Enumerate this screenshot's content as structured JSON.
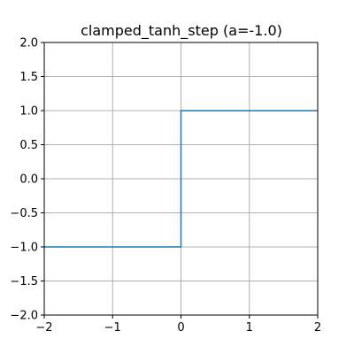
{
  "chart_data": {
    "type": "line",
    "title": "clamped_tanh_step (a=-1.0)",
    "xlabel": "",
    "ylabel": "",
    "xlim": [
      -2,
      2
    ],
    "ylim": [
      -2,
      2
    ],
    "grid": true,
    "x_ticks": [
      -2,
      -1,
      0,
      1,
      2
    ],
    "x_tick_labels": [
      "−2",
      "−1",
      "0",
      "1",
      "2"
    ],
    "y_ticks": [
      -2.0,
      -1.5,
      -1.0,
      -0.5,
      0.0,
      0.5,
      1.0,
      1.5,
      2.0
    ],
    "y_tick_labels": [
      "−2.0",
      "−1.5",
      "−1.0",
      "−0.5",
      "0.0",
      "0.5",
      "1.0",
      "1.5",
      "2.0"
    ],
    "series": [
      {
        "color": "#1f77b4",
        "x": [
          -2,
          0,
          0,
          2
        ],
        "y": [
          -1,
          -1,
          1,
          1
        ]
      }
    ]
  }
}
